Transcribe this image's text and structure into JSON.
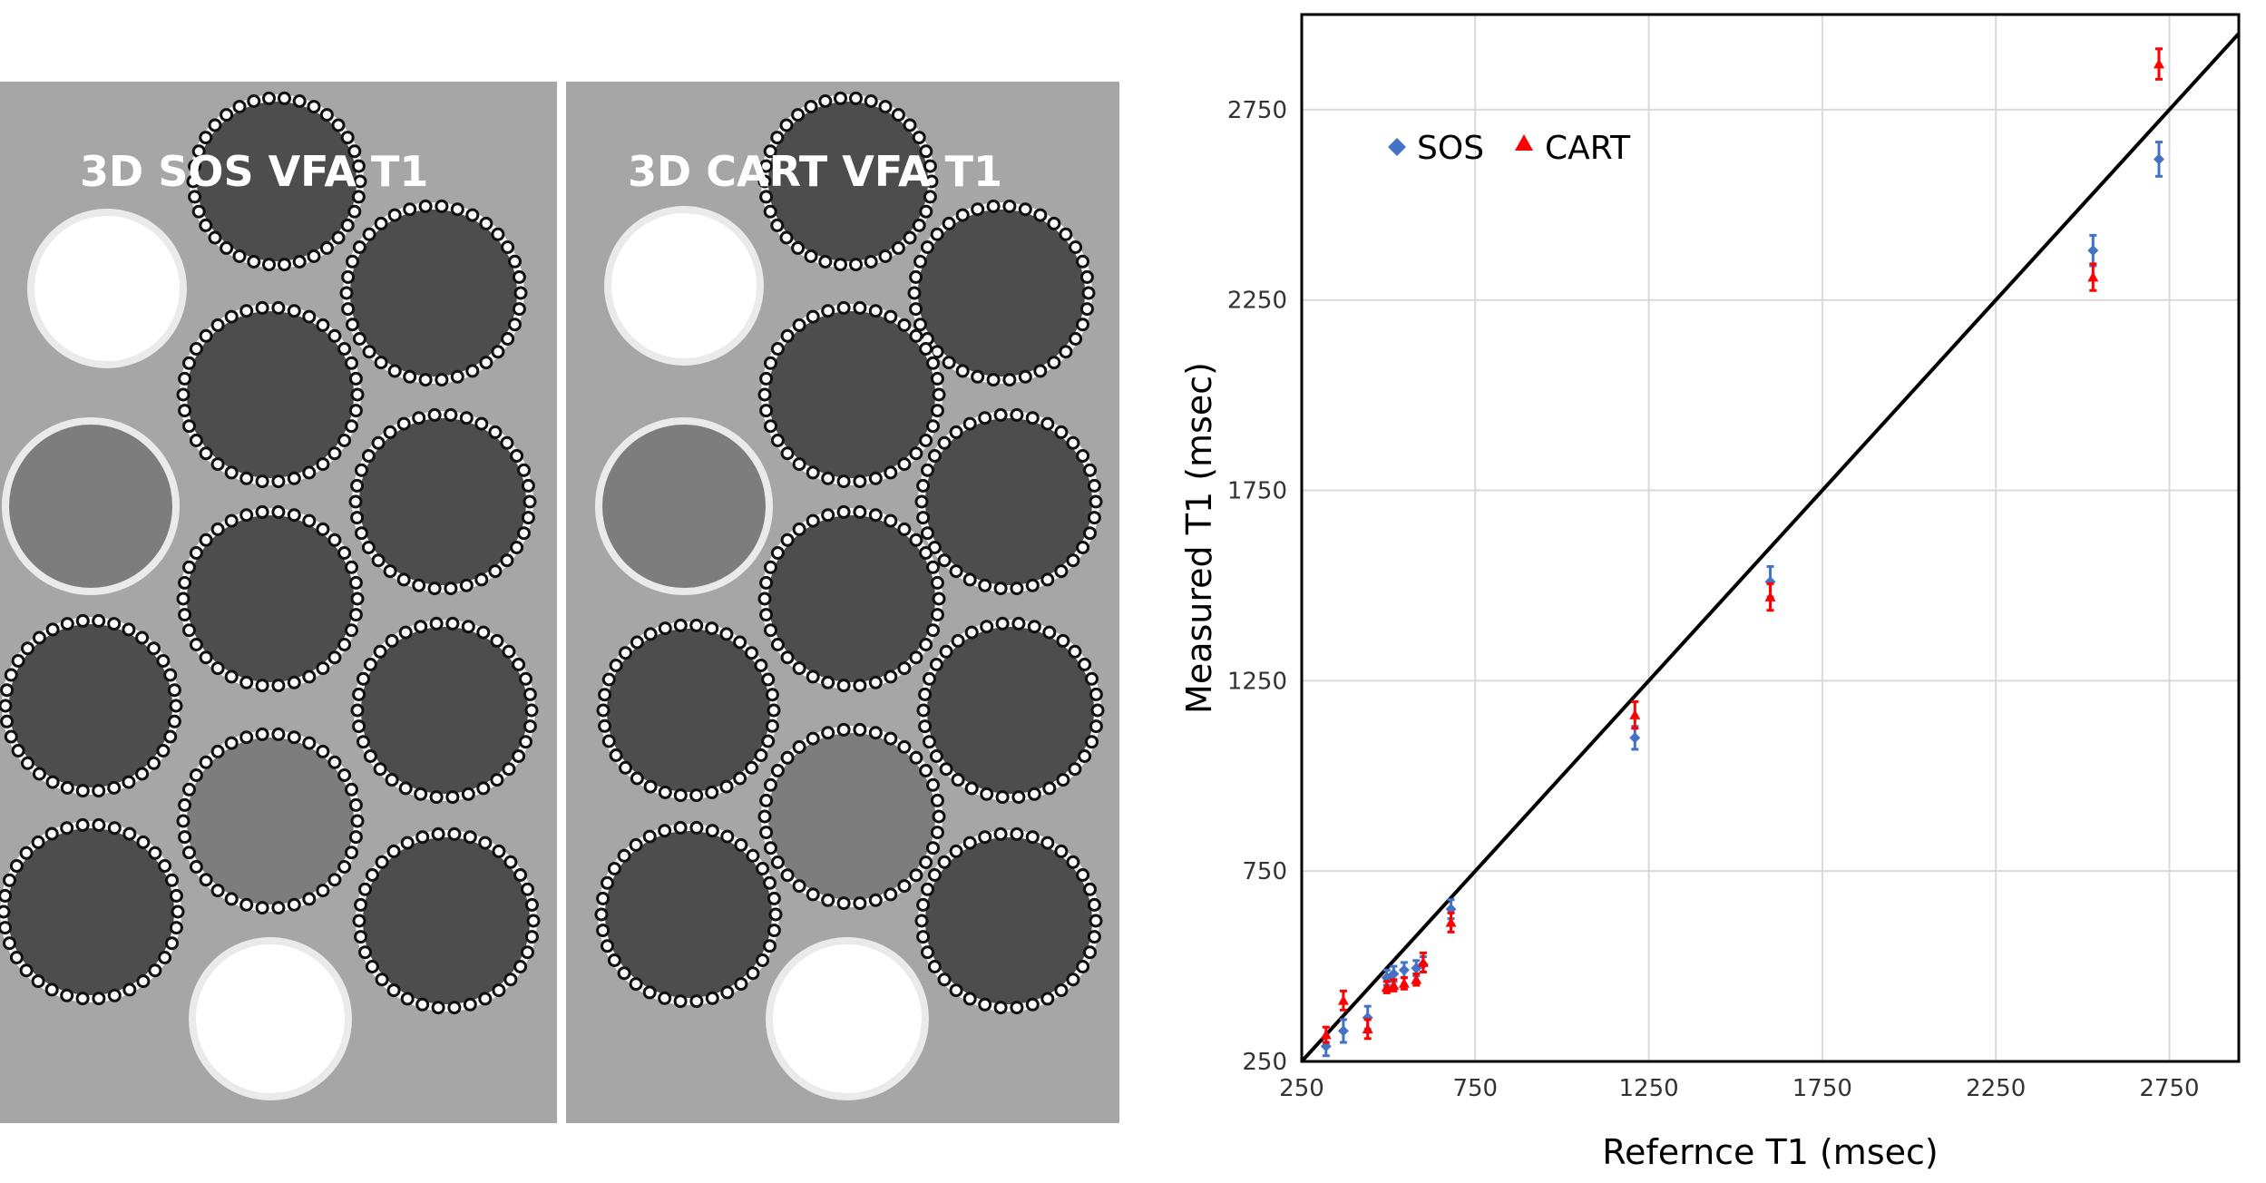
{
  "images": {
    "sos_title": "3D SOS VFA T1",
    "cart_title": "3D CART VFA T1"
  },
  "chart_data": {
    "type": "scatter",
    "title": "",
    "xlabel": "Refernce T1 (msec)",
    "ylabel": "Measured T1 (msec)",
    "xlim": [
      250,
      2950
    ],
    "ylim": [
      250,
      3000
    ],
    "xticks": [
      "250",
      "750",
      "1250",
      "1750",
      "2250",
      "2750"
    ],
    "yticks": [
      "250",
      "750",
      "1250",
      "1750",
      "2250",
      "2750"
    ],
    "grid": true,
    "identity_line": true,
    "legend": {
      "placement": "top-left",
      "entries": [
        "SOS",
        "CART"
      ]
    },
    "colors": {
      "SOS": "#4472c4",
      "CART": "#ff0000"
    },
    "series": [
      {
        "name": "SOS",
        "marker": "diamond",
        "points": [
          {
            "x": 320,
            "y": 290,
            "err": 25
          },
          {
            "x": 370,
            "y": 330,
            "err": 30
          },
          {
            "x": 440,
            "y": 365,
            "err": 30
          },
          {
            "x": 495,
            "y": 470,
            "err": 20
          },
          {
            "x": 515,
            "y": 480,
            "err": 20
          },
          {
            "x": 545,
            "y": 490,
            "err": 20
          },
          {
            "x": 580,
            "y": 495,
            "err": 20
          },
          {
            "x": 600,
            "y": 505,
            "err": 20
          },
          {
            "x": 680,
            "y": 650,
            "err": 25
          },
          {
            "x": 1210,
            "y": 1100,
            "err": 30
          },
          {
            "x": 1600,
            "y": 1510,
            "err": 40
          },
          {
            "x": 2530,
            "y": 2380,
            "err": 40
          },
          {
            "x": 2720,
            "y": 2620,
            "err": 45
          }
        ]
      },
      {
        "name": "CART",
        "marker": "triangle",
        "points": [
          {
            "x": 320,
            "y": 320,
            "err": 20
          },
          {
            "x": 370,
            "y": 410,
            "err": 25
          },
          {
            "x": 440,
            "y": 335,
            "err": 25
          },
          {
            "x": 495,
            "y": 445,
            "err": 15
          },
          {
            "x": 515,
            "y": 450,
            "err": 15
          },
          {
            "x": 545,
            "y": 455,
            "err": 15
          },
          {
            "x": 580,
            "y": 465,
            "err": 15
          },
          {
            "x": 600,
            "y": 510,
            "err": 25
          },
          {
            "x": 680,
            "y": 615,
            "err": 25
          },
          {
            "x": 1210,
            "y": 1160,
            "err": 35
          },
          {
            "x": 1600,
            "y": 1470,
            "err": 35
          },
          {
            "x": 2530,
            "y": 2310,
            "err": 35
          },
          {
            "x": 2720,
            "y": 2870,
            "err": 40
          }
        ]
      }
    ]
  }
}
